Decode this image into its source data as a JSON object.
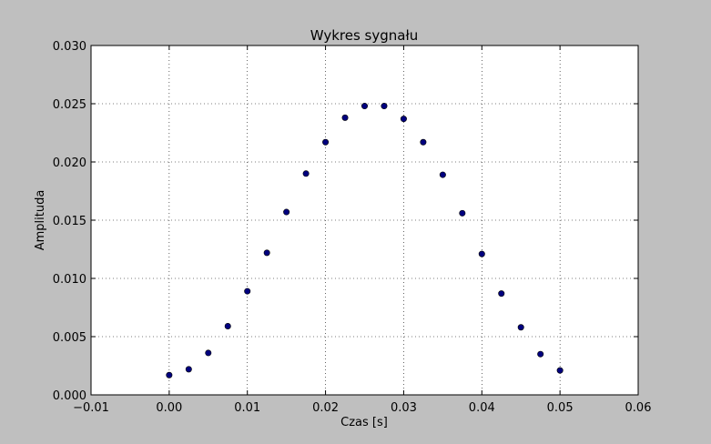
{
  "colors": {
    "figure_background": "#bfbfbf",
    "axes_background": "#ffffff",
    "marker": "#00007f",
    "grid": "#000000"
  },
  "chart_data": {
    "type": "scatter",
    "title": "Wykres sygnału",
    "xlabel": "Czas [s]",
    "ylabel": "Amplituda",
    "xlim": [
      -0.01,
      0.06
    ],
    "ylim": [
      0.0,
      0.03
    ],
    "xticks": [
      -0.01,
      0.0,
      0.01,
      0.02,
      0.03,
      0.04,
      0.05,
      0.06
    ],
    "xtick_labels": [
      "−0.01",
      "0.00",
      "0.01",
      "0.02",
      "0.03",
      "0.04",
      "0.05",
      "0.06"
    ],
    "yticks": [
      0.0,
      0.005,
      0.01,
      0.015,
      0.02,
      0.025,
      0.03
    ],
    "ytick_labels": [
      "0.000",
      "0.005",
      "0.010",
      "0.015",
      "0.020",
      "0.025",
      "0.030"
    ],
    "grid": true,
    "grid_style": "dotted",
    "series": [
      {
        "x": [
          0.0,
          0.0025,
          0.005,
          0.0075,
          0.01,
          0.0125,
          0.015,
          0.0175,
          0.02,
          0.0225,
          0.025,
          0.0275,
          0.03,
          0.0325,
          0.035,
          0.0375,
          0.04,
          0.0425,
          0.045,
          0.0475,
          0.05
        ],
        "y": [
          0.0017,
          0.0022,
          0.0036,
          0.0059,
          0.0089,
          0.0122,
          0.0157,
          0.019,
          0.0217,
          0.0238,
          0.0248,
          0.0248,
          0.0237,
          0.0217,
          0.0189,
          0.0156,
          0.0121,
          0.0087,
          0.0058,
          0.0035,
          0.0021
        ]
      }
    ]
  }
}
